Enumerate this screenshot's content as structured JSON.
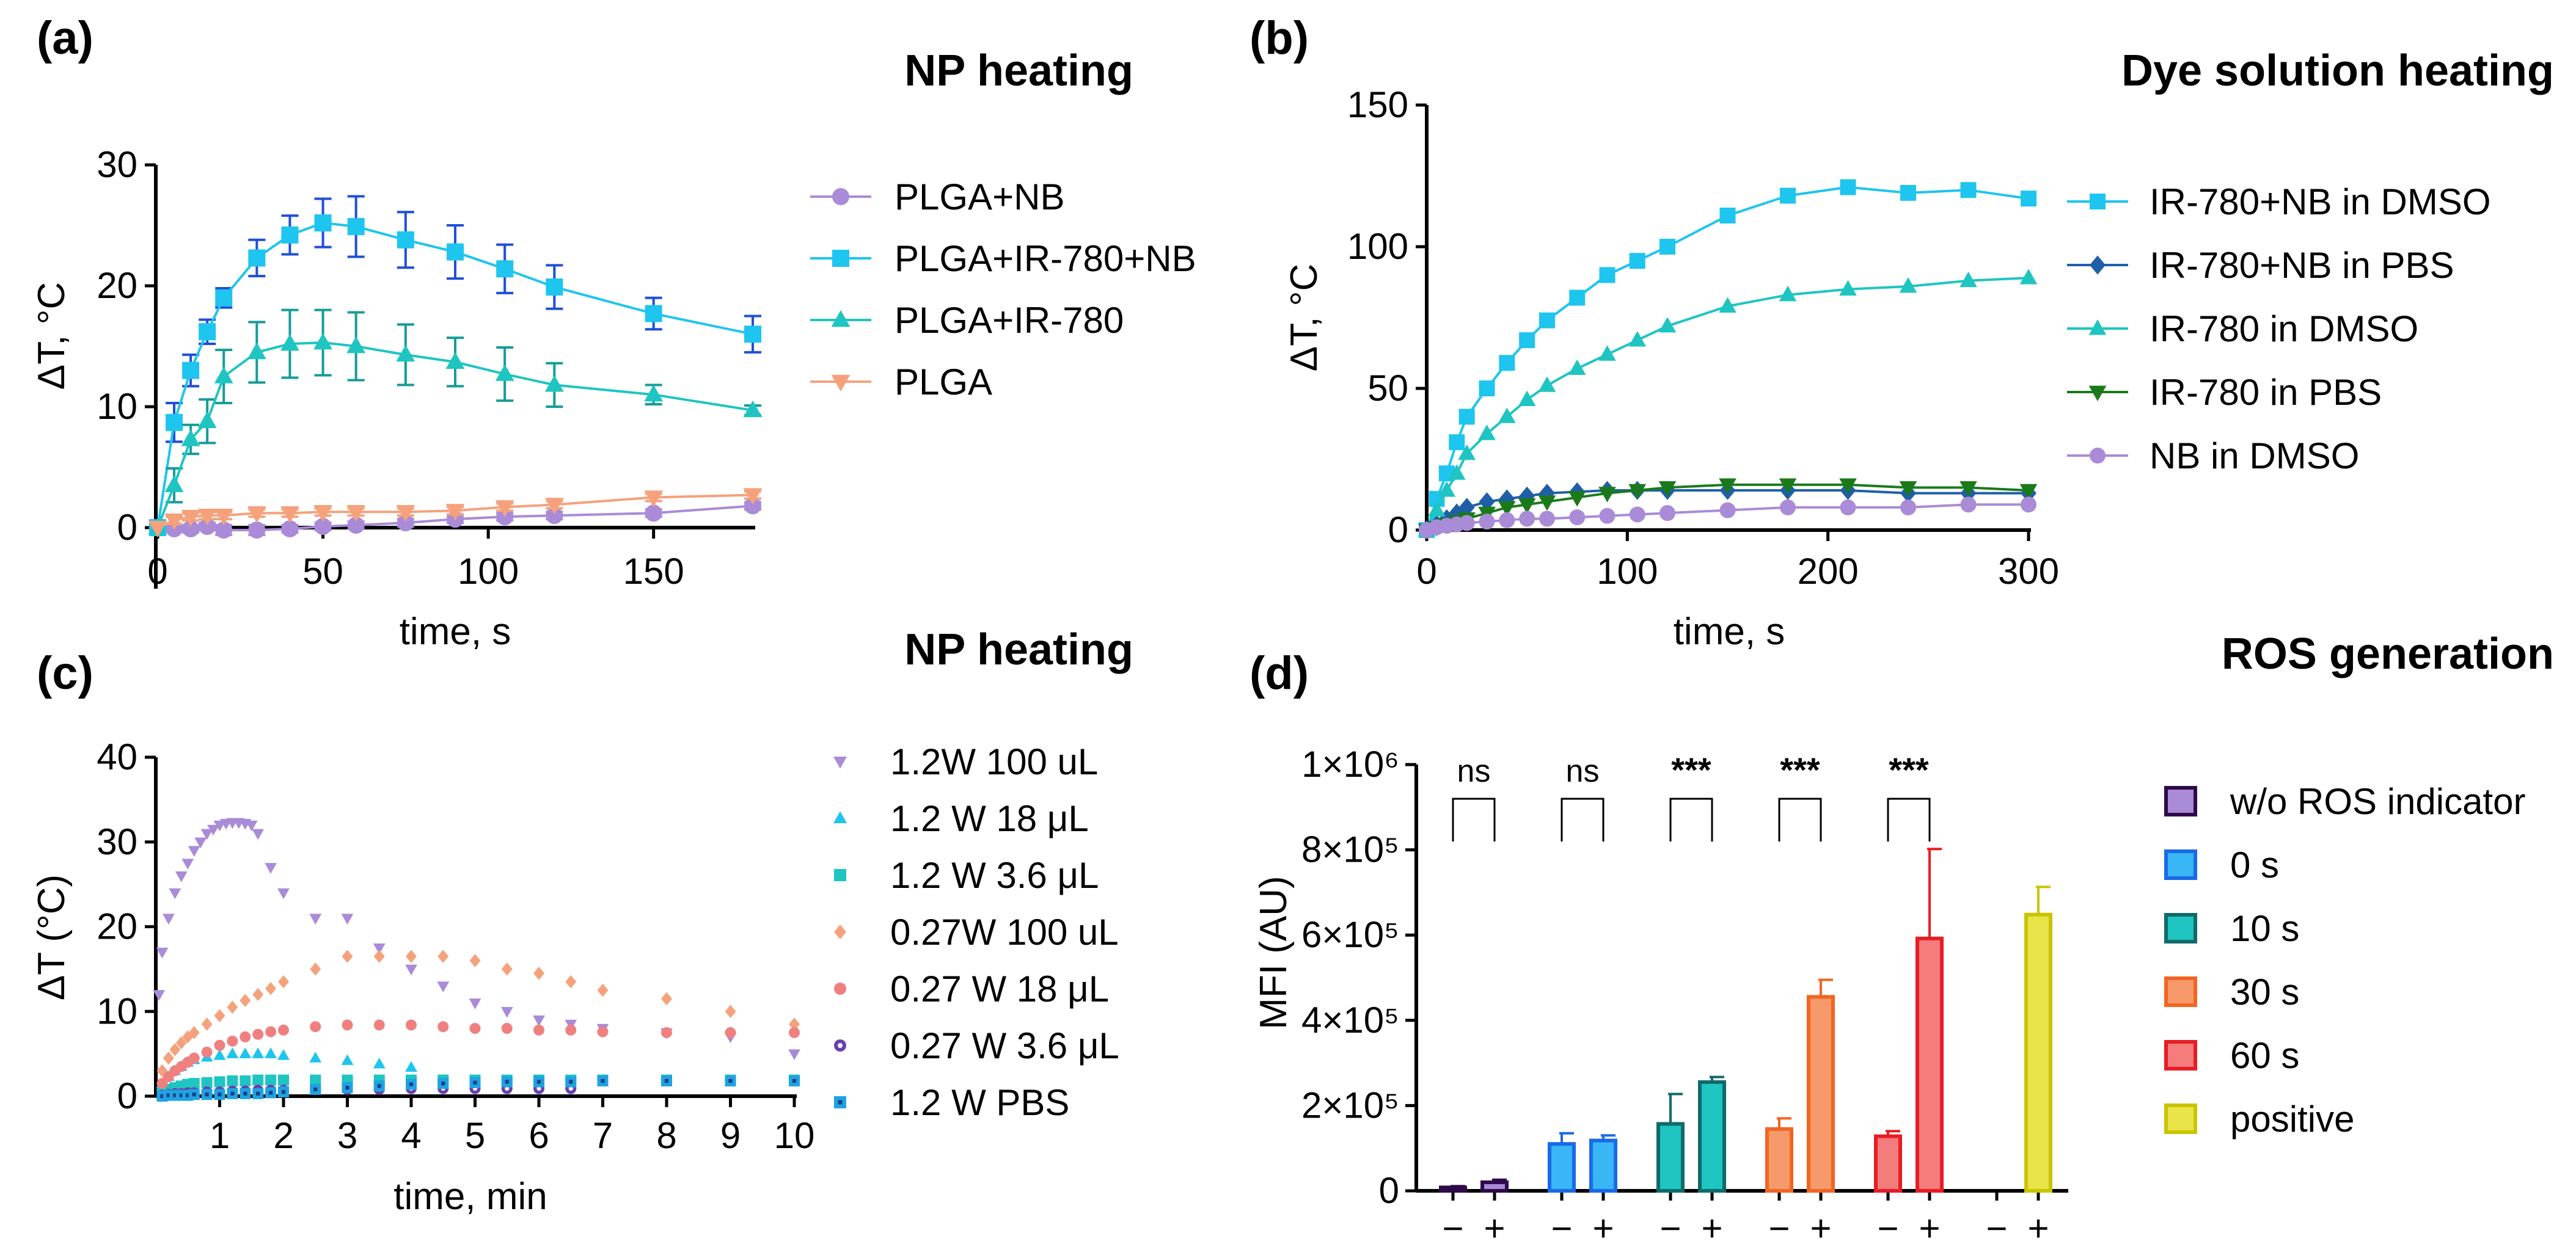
{
  "chart_data": [
    {
      "panel": "(a)",
      "type": "line",
      "title": "NP heating",
      "xlabel": "time, s",
      "ylabel": "ΔT, °C",
      "xlim": [
        0,
        180
      ],
      "ylim": [
        0,
        30
      ],
      "xticks": [
        0,
        50,
        100,
        150
      ],
      "yticks": [
        0,
        10,
        20,
        30
      ],
      "legend_position": "right",
      "series": [
        {
          "name": "PLGA+NB",
          "color": "#A98BD8",
          "marker": "circle",
          "x": [
            0,
            5,
            10,
            15,
            20,
            30,
            40,
            50,
            60,
            75,
            90,
            105,
            120,
            150,
            180
          ],
          "y": [
            0,
            -0.1,
            -0.1,
            0.1,
            -0.2,
            -0.2,
            -0.1,
            0.1,
            0.2,
            0.4,
            0.7,
            0.9,
            1.0,
            1.2,
            1.8
          ],
          "err": [
            0,
            0.2,
            0.3,
            0.3,
            0.4,
            0.4,
            0.3,
            0.3,
            0.3,
            0.3,
            0.3,
            0.3,
            0.3,
            0.3,
            0.3
          ]
        },
        {
          "name": "PLGA+IR-780+NB",
          "color": "#1EC5EE",
          "marker": "square",
          "err_color": "#1F4FD8",
          "x": [
            0,
            5,
            10,
            15,
            20,
            30,
            40,
            50,
            60,
            75,
            90,
            105,
            120,
            150,
            180
          ],
          "y": [
            0,
            8.7,
            13.0,
            16.2,
            19.0,
            22.3,
            24.2,
            25.2,
            24.9,
            23.8,
            22.8,
            21.4,
            19.9,
            17.7,
            16.0
          ],
          "err": [
            0,
            1.6,
            1.3,
            1.0,
            0.8,
            1.5,
            1.6,
            2.0,
            2.5,
            2.3,
            2.2,
            2.0,
            1.8,
            1.3,
            1.5
          ]
        },
        {
          "name": "PLGA+IR-780",
          "color": "#1EC5C1",
          "marker": "triangle-up",
          "err_color": "#169C98",
          "x": [
            0,
            5,
            10,
            15,
            20,
            30,
            40,
            50,
            60,
            75,
            90,
            105,
            120,
            150,
            180
          ],
          "y": [
            0,
            3.5,
            7.3,
            8.8,
            12.5,
            14.5,
            15.2,
            15.3,
            15.0,
            14.3,
            13.7,
            12.7,
            11.8,
            11.0,
            9.7
          ],
          "err": [
            0,
            1.4,
            1.2,
            1.8,
            2.2,
            2.5,
            2.8,
            2.7,
            2.8,
            2.5,
            2.0,
            2.2,
            1.8,
            0.8,
            0.4
          ]
        },
        {
          "name": "PLGA",
          "color": "#F5A27C",
          "marker": "triangle-down",
          "x": [
            0,
            5,
            10,
            15,
            20,
            30,
            40,
            50,
            60,
            75,
            90,
            105,
            120,
            150,
            180
          ],
          "y": [
            0,
            0.6,
            0.9,
            1.0,
            1.0,
            1.2,
            1.2,
            1.3,
            1.3,
            1.3,
            1.4,
            1.7,
            1.9,
            2.5,
            2.7
          ],
          "err": [
            0,
            0.3,
            0.3,
            0.3,
            0.3,
            0.3,
            0.3,
            0.3,
            0.3,
            0.3,
            0.3,
            0.3,
            0.3,
            0.3,
            0.3
          ]
        }
      ]
    },
    {
      "panel": "(b)",
      "type": "line",
      "title": "Dye solution heating",
      "xlabel": "time, s",
      "ylabel": "ΔT, °C",
      "xlim": [
        0,
        300
      ],
      "ylim": [
        0,
        150
      ],
      "xticks": [
        0,
        100,
        200,
        300
      ],
      "yticks": [
        0,
        50,
        100,
        150
      ],
      "legend_position": "right",
      "series": [
        {
          "name": "IR-780+NB in DMSO",
          "color": "#1EC5EE",
          "marker": "square",
          "x": [
            0,
            5,
            10,
            15,
            20,
            30,
            40,
            50,
            60,
            75,
            90,
            105,
            120,
            150,
            180,
            210,
            240,
            270,
            300
          ],
          "y": [
            0,
            11,
            20,
            31,
            40,
            50,
            59,
            67,
            74,
            82,
            90,
            95,
            100,
            111,
            118,
            121,
            119,
            120,
            117
          ]
        },
        {
          "name": "IR-780+NB in PBS",
          "color": "#1F5FA8",
          "marker": "diamond",
          "x": [
            0,
            5,
            10,
            15,
            20,
            30,
            40,
            50,
            60,
            75,
            90,
            105,
            120,
            150,
            180,
            210,
            240,
            270,
            300
          ],
          "y": [
            0,
            2,
            4,
            6,
            8,
            10,
            11,
            12,
            13,
            13.5,
            14,
            14,
            14,
            14,
            14,
            14,
            13,
            13,
            13
          ]
        },
        {
          "name": "IR-780 in DMSO",
          "color": "#1EC5C1",
          "marker": "triangle-up",
          "x": [
            0,
            5,
            10,
            15,
            20,
            30,
            40,
            50,
            60,
            75,
            90,
            105,
            120,
            150,
            180,
            210,
            240,
            270,
            300
          ],
          "y": [
            0,
            7,
            14,
            20,
            27,
            34,
            40,
            46,
            51,
            57,
            62,
            67,
            72,
            79,
            83,
            85,
            86,
            88,
            89
          ]
        },
        {
          "name": "IR-780 in PBS",
          "color": "#1A7A1A",
          "marker": "triangle-down",
          "x": [
            0,
            5,
            10,
            15,
            20,
            30,
            40,
            50,
            60,
            75,
            90,
            105,
            120,
            150,
            180,
            210,
            240,
            270,
            300
          ],
          "y": [
            0,
            1,
            2,
            3,
            4,
            6,
            8,
            9,
            10,
            11.5,
            13,
            14,
            15,
            16,
            16,
            16,
            15,
            15,
            14
          ]
        },
        {
          "name": "NB in DMSO",
          "color": "#A98BD8",
          "marker": "circle",
          "x": [
            0,
            5,
            10,
            15,
            20,
            30,
            40,
            50,
            60,
            75,
            90,
            105,
            120,
            150,
            180,
            210,
            240,
            270,
            300
          ],
          "y": [
            0,
            1,
            1.5,
            2,
            2.5,
            3,
            3.5,
            4,
            4,
            4.5,
            5,
            5.5,
            6,
            7,
            8,
            8,
            8,
            9,
            9
          ]
        }
      ]
    },
    {
      "panel": "(c)",
      "type": "scatter",
      "title": "NP heating",
      "xlabel": "time, min",
      "ylabel": "ΔT (°C)",
      "xlim": [
        0,
        10
      ],
      "ylim": [
        0,
        40
      ],
      "xticks": [
        1,
        2,
        3,
        4,
        5,
        6,
        7,
        8,
        9,
        10
      ],
      "yticks": [
        0,
        10,
        20,
        30,
        40
      ],
      "legend_position": "right",
      "series": [
        {
          "name": "1.2W 100 uL",
          "color": "#A98BD8",
          "marker": "triangle-down",
          "x": [
            0.05,
            0.1,
            0.2,
            0.3,
            0.4,
            0.5,
            0.6,
            0.7,
            0.8,
            0.9,
            1.0,
            1.1,
            1.2,
            1.3,
            1.4,
            1.5,
            1.6,
            1.8,
            2.0,
            2.5,
            3.0,
            3.5,
            4.0,
            4.5,
            5.0,
            5.5,
            6.0,
            6.5,
            7.0,
            8.0,
            9.0,
            10.0
          ],
          "y": [
            12,
            17,
            21,
            24,
            26,
            27.5,
            29,
            30,
            31,
            31.5,
            32,
            32.2,
            32.3,
            32.3,
            32.2,
            32,
            31,
            27,
            24,
            21,
            21,
            17.5,
            15,
            13,
            11,
            10,
            9,
            8.5,
            8,
            7.5,
            7,
            5
          ]
        },
        {
          "name": "1.2 W 18  μL",
          "color": "#1EC5EE",
          "marker": "triangle-up",
          "x": [
            0.1,
            0.2,
            0.3,
            0.4,
            0.5,
            0.6,
            0.8,
            1.0,
            1.2,
            1.4,
            1.6,
            1.8,
            2.0,
            2.5,
            3.0,
            3.5,
            4.0
          ],
          "y": [
            1.5,
            2.3,
            3,
            3.5,
            4,
            4.3,
            4.6,
            4.8,
            5,
            5,
            5,
            5,
            4.8,
            4.5,
            4.2,
            3.8,
            3.4
          ]
        },
        {
          "name": "1.2 W 3.6 μL",
          "color": "#1EC5C1",
          "marker": "square",
          "x": [
            0.1,
            0.2,
            0.3,
            0.4,
            0.5,
            0.6,
            0.8,
            1.0,
            1.2,
            1.4,
            1.6,
            1.8,
            2.0,
            2.5,
            3.0,
            3.5,
            4.0,
            4.5,
            5.0,
            5.5,
            6.0,
            6.5,
            7.0,
            8.0,
            9.0,
            10.0
          ],
          "y": [
            0.5,
            0.8,
            1.0,
            1.2,
            1.4,
            1.5,
            1.6,
            1.7,
            1.8,
            1.8,
            1.9,
            1.9,
            1.9,
            1.9,
            1.9,
            1.9,
            1.9,
            1.9,
            1.9,
            1.9,
            1.9,
            1.9,
            1.9,
            1.9,
            1.9,
            1.9
          ]
        },
        {
          "name": "0.27W 100 uL",
          "color": "#F5A27C",
          "marker": "diamond",
          "x": [
            0.1,
            0.2,
            0.3,
            0.4,
            0.5,
            0.6,
            0.8,
            1.0,
            1.2,
            1.4,
            1.6,
            1.8,
            2.0,
            2.5,
            3.0,
            3.5,
            4.0,
            4.5,
            5.0,
            5.5,
            6.0,
            6.5,
            7.0,
            8.0,
            9.0,
            10.0
          ],
          "y": [
            3,
            4.5,
            5.5,
            6.3,
            7,
            7.5,
            8.5,
            9.5,
            10.5,
            11.3,
            12,
            12.7,
            13.5,
            15,
            16.5,
            16.5,
            16.5,
            16.5,
            16,
            15,
            14.5,
            13.5,
            12.5,
            11.5,
            10,
            8.5
          ]
        },
        {
          "name": "0.27 W 18 μL",
          "color": "#F08080",
          "marker": "circle",
          "x": [
            0.1,
            0.2,
            0.3,
            0.4,
            0.5,
            0.6,
            0.8,
            1.0,
            1.2,
            1.4,
            1.6,
            1.8,
            2.0,
            2.5,
            3.0,
            3.5,
            4.0,
            4.5,
            5.0,
            5.5,
            6.0,
            6.5,
            7.0,
            8.0,
            9.0,
            10.0
          ],
          "y": [
            1.5,
            2.3,
            3,
            3.5,
            4,
            4.5,
            5.2,
            6,
            6.5,
            7,
            7.3,
            7.6,
            7.8,
            8.2,
            8.4,
            8.4,
            8.4,
            8.2,
            8,
            8,
            7.8,
            7.8,
            7.6,
            7.5,
            7.5,
            7.5
          ]
        },
        {
          "name": "0.27 W 3.6  μL",
          "color": "#6A3FB0",
          "marker": "circle-dot",
          "x": [
            0.1,
            0.2,
            0.3,
            0.4,
            0.5,
            0.6,
            0.8,
            1.0,
            1.2,
            1.4,
            1.6,
            1.8,
            2.0,
            2.5,
            3.0,
            3.5,
            4.0,
            4.5,
            5.0,
            5.5,
            6.0,
            6.5
          ],
          "y": [
            0.1,
            0.2,
            0.3,
            0.3,
            0.4,
            0.4,
            0.5,
            0.5,
            0.6,
            0.6,
            0.7,
            0.7,
            0.7,
            0.8,
            0.8,
            0.8,
            0.9,
            0.9,
            0.9,
            0.9,
            0.9,
            0.9
          ]
        },
        {
          "name": "1.2 W PBS",
          "color": "#1EA3E0",
          "marker": "square-dot",
          "x": [
            0.1,
            0.2,
            0.3,
            0.4,
            0.5,
            0.6,
            0.8,
            1.0,
            1.2,
            1.4,
            1.6,
            1.8,
            2.0,
            2.5,
            3.0,
            3.5,
            4.0,
            4.5,
            5.0,
            5.5,
            6.0,
            6.5,
            7.0,
            8.0,
            9.0,
            10.0
          ],
          "y": [
            0,
            0.1,
            0.1,
            0.1,
            0.1,
            0.2,
            0.2,
            0.2,
            0.3,
            0.3,
            0.3,
            0.4,
            0.5,
            0.8,
            1.0,
            1.2,
            1.4,
            1.5,
            1.6,
            1.7,
            1.7,
            1.7,
            1.8,
            1.8,
            1.8,
            1.8
          ]
        }
      ]
    },
    {
      "panel": "(d)",
      "type": "bar",
      "title": "ROS generation",
      "xlabel": "",
      "ylabel": "MFI (AU)",
      "ylim": [
        0,
        1000000
      ],
      "yticks": [
        0,
        200000,
        400000,
        600000,
        800000,
        1000000
      ],
      "ytick_labels": [
        "0",
        "2×10⁵",
        "4×10⁵",
        "6×10⁵",
        "8×10⁵",
        "1×10⁶"
      ],
      "legend_position": "right",
      "groups": [
        {
          "name": "w/o ROS indicator",
          "color": "#2E0A4A",
          "fill": "#A98BD8",
          "categories": [
            "−",
            "+"
          ],
          "values": [
            8000,
            20000
          ],
          "err": [
            3000,
            6000
          ],
          "sig": "ns"
        },
        {
          "name": "0 s",
          "color": "#1A6AE8",
          "fill": "#38B6F5",
          "categories": [
            "−",
            "+"
          ],
          "values": [
            110000,
            118000
          ],
          "err": [
            25000,
            12000
          ],
          "sig": "ns"
        },
        {
          "name": "10 s",
          "color": "#116A6A",
          "fill": "#1EC5C1",
          "categories": [
            "−",
            "+"
          ],
          "values": [
            157000,
            255000
          ],
          "err": [
            70000,
            12000
          ],
          "sig": "***"
        },
        {
          "name": "30 s",
          "color": "#F26522",
          "fill": "#F79A6B",
          "categories": [
            "−",
            "+"
          ],
          "values": [
            145000,
            455000
          ],
          "err": [
            25000,
            40000
          ],
          "sig": "***"
        },
        {
          "name": "60 s",
          "color": "#E81C24",
          "fill": "#F47C7C",
          "categories": [
            "−",
            "+"
          ],
          "values": [
            128000,
            592000
          ],
          "err": [
            12000,
            210000
          ],
          "sig": "***"
        },
        {
          "name": "positive",
          "color": "#C9C400",
          "fill": "#E8E44A",
          "categories": [
            "−",
            "+"
          ],
          "values": [
            null,
            648000
          ],
          "err": [
            null,
            65000
          ],
          "sig": null
        }
      ]
    }
  ]
}
